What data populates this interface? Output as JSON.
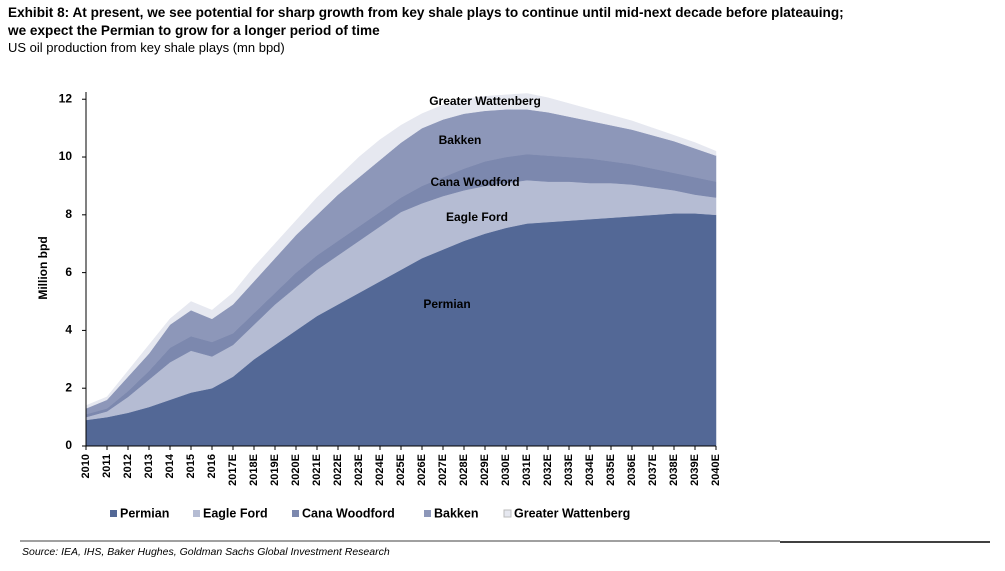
{
  "chart_data": {
    "type": "stacked-area",
    "title": [
      "Exhibit 8: At present, we see potential for sharp growth from key shale plays to continue until mid-next decade before plateauing;",
      "we expect the Permian to grow for a longer period of time"
    ],
    "subtitle": "US oil production from key shale plays (mn bpd)",
    "y_label": "Million bpd",
    "source": "Source: IEA, IHS, Baker Hughes, Goldman Sachs Global Investment Research",
    "categories": [
      "2010",
      "2011",
      "2012",
      "2013",
      "2014",
      "2015",
      "2016",
      "2017E",
      "2018E",
      "2019E",
      "2020E",
      "2021E",
      "2022E",
      "2023E",
      "2024E",
      "2025E",
      "2026E",
      "2027E",
      "2028E",
      "2029E",
      "2030E",
      "2031E",
      "2032E",
      "2033E",
      "2034E",
      "2035E",
      "2036E",
      "2037E",
      "2038E",
      "2039E",
      "2040E"
    ],
    "series": [
      {
        "name": "Permian",
        "color": "#536896",
        "values": [
          0.9,
          1.0,
          1.15,
          1.35,
          1.6,
          1.85,
          2.0,
          2.4,
          3.0,
          3.5,
          4.0,
          4.5,
          4.9,
          5.3,
          5.7,
          6.1,
          6.5,
          6.8,
          7.1,
          7.35,
          7.55,
          7.7,
          7.75,
          7.8,
          7.85,
          7.9,
          7.95,
          8.0,
          8.05,
          8.05,
          8.0
        ]
      },
      {
        "name": "Eagle Ford",
        "color": "#b5bcd3",
        "values": [
          0.1,
          0.2,
          0.55,
          0.95,
          1.3,
          1.45,
          1.1,
          1.1,
          1.2,
          1.4,
          1.5,
          1.6,
          1.7,
          1.8,
          1.9,
          2.0,
          1.9,
          1.85,
          1.75,
          1.65,
          1.55,
          1.5,
          1.4,
          1.35,
          1.25,
          1.2,
          1.1,
          0.95,
          0.8,
          0.65,
          0.6
        ]
      },
      {
        "name": "Cana Woodford",
        "color": "#7c88ae",
        "values": [
          0.1,
          0.1,
          0.2,
          0.3,
          0.5,
          0.5,
          0.5,
          0.4,
          0.4,
          0.4,
          0.5,
          0.5,
          0.5,
          0.5,
          0.5,
          0.5,
          0.6,
          0.65,
          0.75,
          0.85,
          0.9,
          0.9,
          0.9,
          0.85,
          0.85,
          0.75,
          0.7,
          0.65,
          0.6,
          0.6,
          0.55
        ]
      },
      {
        "name": "Bakken",
        "color": "#8d97b9",
        "values": [
          0.2,
          0.3,
          0.5,
          0.6,
          0.8,
          0.9,
          0.8,
          1.0,
          1.1,
          1.2,
          1.3,
          1.4,
          1.6,
          1.7,
          1.8,
          1.9,
          2.0,
          2.0,
          1.9,
          1.75,
          1.65,
          1.55,
          1.5,
          1.4,
          1.3,
          1.25,
          1.2,
          1.15,
          1.1,
          1.0,
          0.9
        ]
      },
      {
        "name": "Greater Wattenberg",
        "color": "#e6e8f0",
        "values": [
          0.1,
          0.1,
          0.2,
          0.3,
          0.2,
          0.3,
          0.3,
          0.4,
          0.5,
          0.5,
          0.5,
          0.6,
          0.6,
          0.7,
          0.7,
          0.6,
          0.5,
          0.5,
          0.5,
          0.5,
          0.5,
          0.55,
          0.5,
          0.45,
          0.4,
          0.35,
          0.3,
          0.25,
          0.2,
          0.2,
          0.15
        ]
      }
    ],
    "ylim": [
      0,
      12.25
    ],
    "yticks": [
      0,
      2,
      4,
      6,
      8,
      10,
      12
    ],
    "grid": false
  }
}
